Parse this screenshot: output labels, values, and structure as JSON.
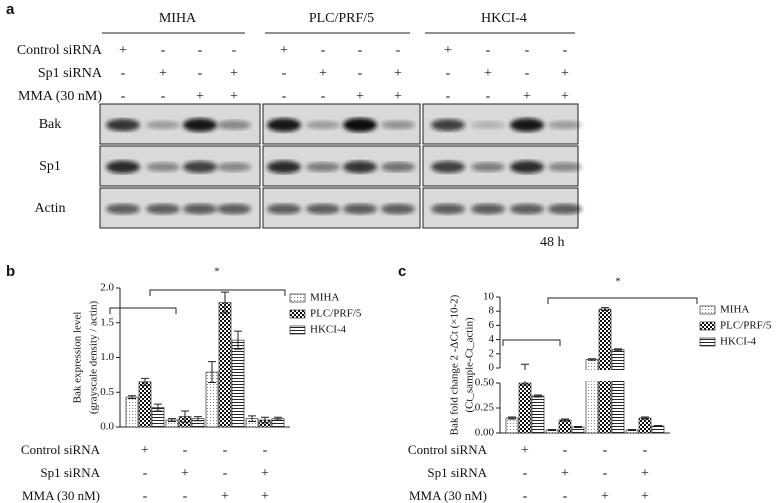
{
  "panel_a": {
    "label": "a",
    "cell_lines": [
      "MIHA",
      "PLC/PRF/5",
      "HKCI-4"
    ],
    "rows": [
      {
        "name": "Control siRNA",
        "signs": [
          "+",
          "-",
          "-",
          "-",
          "+",
          "-",
          "-",
          "-",
          "+",
          "-",
          "-",
          "-"
        ]
      },
      {
        "name": "Sp1 siRNA",
        "signs": [
          "-",
          "+",
          "-",
          "+",
          "-",
          "+",
          "-",
          "+",
          "-",
          "+",
          "-",
          "+"
        ]
      },
      {
        "name": "MMA (30 nM)",
        "signs": [
          "-",
          "-",
          "+",
          "+",
          "-",
          "-",
          "+",
          "+",
          "-",
          "-",
          "+",
          "+"
        ]
      }
    ],
    "blots": [
      "Bak",
      "Sp1",
      "Actin"
    ],
    "time": "48 h"
  },
  "chart_data": [
    {
      "type": "bar",
      "label": "b",
      "ylabel": [
        "Bak expression level",
        "(grayscale density / actin)"
      ],
      "categories": [
        null,
        null,
        null,
        null
      ],
      "series": [
        {
          "name": "MIHA",
          "fill": "dots",
          "values": [
            0.43,
            0.1,
            0.79,
            0.12
          ],
          "errors": [
            0.02,
            0.02,
            0.15,
            0.04
          ]
        },
        {
          "name": "PLC/PRF/5",
          "fill": "checker",
          "values": [
            0.65,
            0.15,
            1.79,
            0.1
          ],
          "errors": [
            0.05,
            0.08,
            0.15,
            0.04
          ]
        },
        {
          "name": "HKCI-4",
          "fill": "stripes",
          "values": [
            0.28,
            0.12,
            1.25,
            0.12
          ],
          "errors": [
            0.05,
            0.03,
            0.13,
            0.02
          ]
        }
      ],
      "ylim": [
        0,
        2
      ],
      "yticks": [
        {
          "value": 0,
          "label": "0.0"
        },
        {
          "value": 0.5,
          "label": "0.5"
        },
        {
          "value": 1,
          "label": "1.0"
        },
        {
          "value": 1.5,
          "label": "1.5"
        },
        {
          "value": 2,
          "label": "2.0"
        }
      ],
      "annotations": [
        "*"
      ],
      "conditions": [
        {
          "name": "Control siRNA",
          "signs": [
            "+",
            "-",
            "-",
            "-"
          ]
        },
        {
          "name": "Sp1 siRNA",
          "signs": [
            "-",
            "+",
            "-",
            "+"
          ]
        },
        {
          "name": "MMA (30 nM)",
          "signs": [
            "-",
            "-",
            "+",
            "+"
          ]
        }
      ]
    },
    {
      "type": "broken-bar",
      "label": "c",
      "ylabel": [
        "Bak fold change 2 -ΔCt (×10-2)",
        "(Ct_sample-Ct_actin)"
      ],
      "categories": [
        null,
        null,
        null,
        null
      ],
      "series": [
        {
          "name": "MIHA",
          "fill": "dots",
          "values": [
            0.15,
            0.03,
            1.2,
            0.03
          ],
          "errors": [
            0.01,
            0.005,
            0.1,
            0.005
          ]
        },
        {
          "name": "PLC/PRF/5",
          "fill": "checker",
          "values": [
            0.5,
            0.13,
            8.3,
            0.15
          ],
          "errors": [
            0.02,
            0.01,
            0.2,
            0.01
          ]
        },
        {
          "name": "HKCI-4",
          "fill": "stripes",
          "values": [
            0.37,
            0.06,
            2.6,
            0.07
          ],
          "errors": [
            0.01,
            0.005,
            0.1,
            0.005
          ]
        }
      ],
      "ylim": [
        0,
        0.5
      ],
      "yticks": [
        {
          "value": 0,
          "label": "0.00"
        },
        {
          "value": 0.25,
          "label": "0.25"
        },
        {
          "value": 0.5,
          "label": "0.50"
        }
      ],
      "y2lim": [
        0,
        10
      ],
      "y2ticks": [
        0,
        2,
        4,
        6,
        8,
        10
      ],
      "annotations": [
        "*"
      ],
      "conditions": [
        {
          "name": "Control siRNA",
          "signs": [
            "+",
            "-",
            "-",
            "-"
          ]
        },
        {
          "name": "Sp1 siRNA",
          "signs": [
            "-",
            "+",
            "-",
            "+"
          ]
        },
        {
          "name": "MMA (30 nM)",
          "signs": [
            "-",
            "-",
            "+",
            "+"
          ]
        }
      ]
    }
  ]
}
